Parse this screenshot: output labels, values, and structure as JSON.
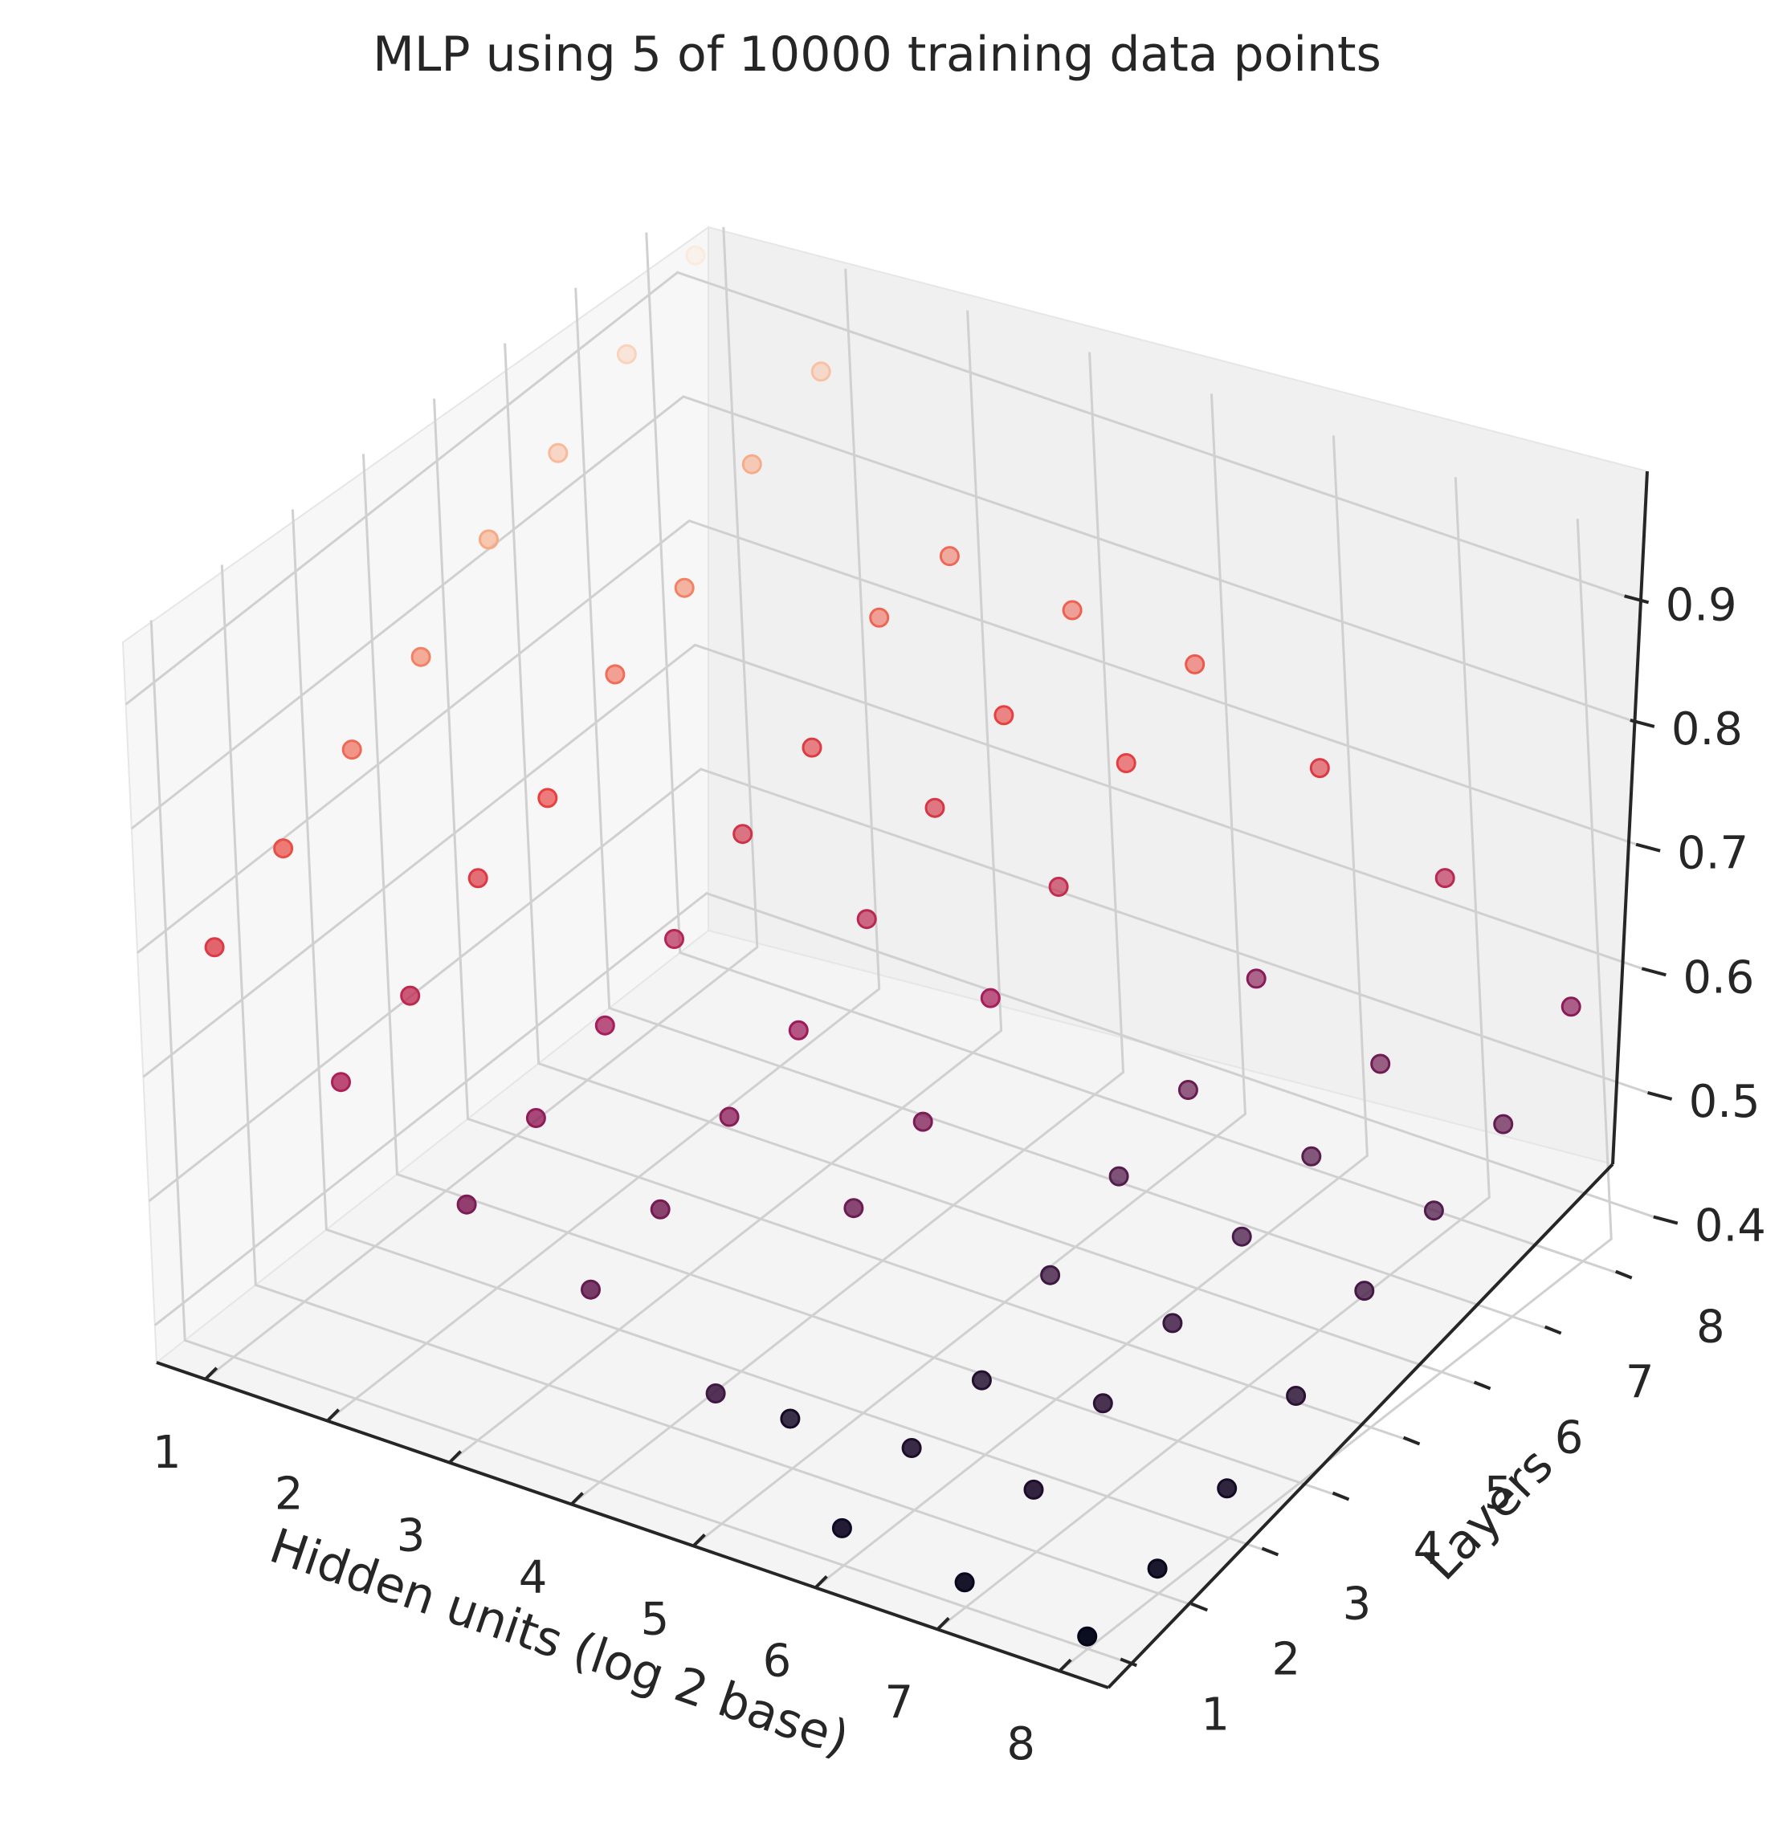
{
  "figure": {
    "title": "MLP using 5 of 10000 training data points"
  },
  "chart_data": {
    "type": "scatter",
    "projection": "3d",
    "title": "MLP using 5 of 10000 training data points",
    "xlabel": "Hidden units (log 2 base)",
    "ylabel": "Layers",
    "zlabel": "",
    "x_ticks": [
      "1",
      "2",
      "3",
      "4",
      "5",
      "6",
      "7",
      "8"
    ],
    "y_ticks": [
      "1",
      "2",
      "3",
      "4",
      "5",
      "6",
      "7",
      "8"
    ],
    "z_ticks": [
      "0.4",
      "0.5",
      "0.6",
      "0.7",
      "0.8",
      "0.9"
    ],
    "xlim": [
      0.6,
      8.4
    ],
    "ylim": [
      0.6,
      8.4
    ],
    "zlim": [
      0.37,
      0.95
    ],
    "grid": true,
    "colormap": "rocket",
    "colormap_stops": [
      "#03051a",
      "#4c1d4b",
      "#a11a5b",
      "#e83f3f",
      "#f69c73",
      "#faebdd"
    ],
    "points": [
      {
        "x": 1,
        "y": 1,
        "z": 0.7
      },
      {
        "x": 1,
        "y": 2,
        "z": 0.735
      },
      {
        "x": 1,
        "y": 3,
        "z": 0.77
      },
      {
        "x": 1,
        "y": 4,
        "z": 0.8
      },
      {
        "x": 1,
        "y": 5,
        "z": 0.85
      },
      {
        "x": 1,
        "y": 6,
        "z": 0.875
      },
      {
        "x": 1,
        "y": 7,
        "z": 0.91
      },
      {
        "x": 1,
        "y": 8,
        "z": 0.945
      },
      {
        "x": 2,
        "y": 1,
        "z": 0.625
      },
      {
        "x": 2,
        "y": 2,
        "z": 0.65
      },
      {
        "x": 2,
        "y": 3,
        "z": 0.7
      },
      {
        "x": 2,
        "y": 4,
        "z": 0.72
      },
      {
        "x": 2,
        "y": 5,
        "z": 0.775
      },
      {
        "x": 2,
        "y": 6,
        "z": 0.8
      },
      {
        "x": 2,
        "y": 7,
        "z": 0.855
      },
      {
        "x": 2,
        "y": 8,
        "z": 0.885
      },
      {
        "x": 3,
        "y": 1,
        "z": 0.56
      },
      {
        "x": 3,
        "y": 2,
        "z": 0.585
      },
      {
        "x": 3,
        "y": 3,
        "z": 0.615
      },
      {
        "x": 3,
        "y": 4,
        "z": 0.64
      },
      {
        "x": 3,
        "y": 5,
        "z": 0.68
      },
      {
        "x": 3,
        "y": 6,
        "z": 0.705
      },
      {
        "x": 3,
        "y": 7,
        "z": 0.765
      },
      {
        "x": 3,
        "y": 8,
        "z": 0.77
      },
      {
        "x": 4,
        "y": 1,
        "z": 0.525
      },
      {
        "x": 4,
        "y": 2,
        "z": 0.545
      },
      {
        "x": 4,
        "y": 3,
        "z": 0.575
      },
      {
        "x": 4,
        "y": 4,
        "z": 0.6
      },
      {
        "x": 4,
        "y": 5,
        "z": 0.645
      },
      {
        "x": 4,
        "y": 6,
        "z": 0.69
      },
      {
        "x": 4,
        "y": 7,
        "z": 0.72
      },
      {
        "x": 4,
        "y": 8,
        "z": 0.76
      },
      {
        "x": 5,
        "y": 1,
        "z": 0.475
      },
      {
        "x": 5,
        "y": 2,
        "z": 0.41
      },
      {
        "x": 5,
        "y": 3,
        "z": 0.535
      },
      {
        "x": 5,
        "y": 4,
        "z": 0.56
      },
      {
        "x": 5,
        "y": 5,
        "z": 0.615
      },
      {
        "x": 5,
        "y": 6,
        "z": 0.66
      },
      {
        "x": 5,
        "y": 7,
        "z": 0.715
      },
      {
        "x": 5,
        "y": 8,
        "z": 0.75
      },
      {
        "x": 6,
        "y": 1,
        "z": 0.4
      },
      {
        "x": 6,
        "y": 2,
        "z": 0.42
      },
      {
        "x": 6,
        "y": 3,
        "z": 0.43
      },
      {
        "x": 6,
        "y": 4,
        "z": 0.47
      },
      {
        "x": 6,
        "y": 5,
        "z": 0.505
      },
      {
        "x": 6,
        "y": 6,
        "z": 0.53
      },
      {
        "x": 6,
        "y": 7,
        "z": 0.575
      },
      {
        "x": 6,
        "y": 8,
        "z": 0.7
      },
      {
        "x": 7,
        "y": 1,
        "z": 0.39
      },
      {
        "x": 7,
        "y": 2,
        "z": 0.42
      },
      {
        "x": 7,
        "y": 3,
        "z": 0.445
      },
      {
        "x": 7,
        "y": 4,
        "z": 0.465
      },
      {
        "x": 7,
        "y": 5,
        "z": 0.49
      },
      {
        "x": 7,
        "y": 6,
        "z": 0.51
      },
      {
        "x": 7,
        "y": 7,
        "z": 0.54
      },
      {
        "x": 7,
        "y": 8,
        "z": 0.645
      },
      {
        "x": 8,
        "y": 1,
        "z": 0.38
      },
      {
        "x": 8,
        "y": 2,
        "z": 0.39
      },
      {
        "x": 8,
        "y": 3,
        "z": 0.41
      },
      {
        "x": 8,
        "y": 4,
        "z": 0.44
      },
      {
        "x": 8,
        "y": 5,
        "z": 0.48
      },
      {
        "x": 8,
        "y": 6,
        "z": 0.5
      },
      {
        "x": 8,
        "y": 7,
        "z": 0.525
      },
      {
        "x": 8,
        "y": 8,
        "z": 0.575
      }
    ]
  }
}
